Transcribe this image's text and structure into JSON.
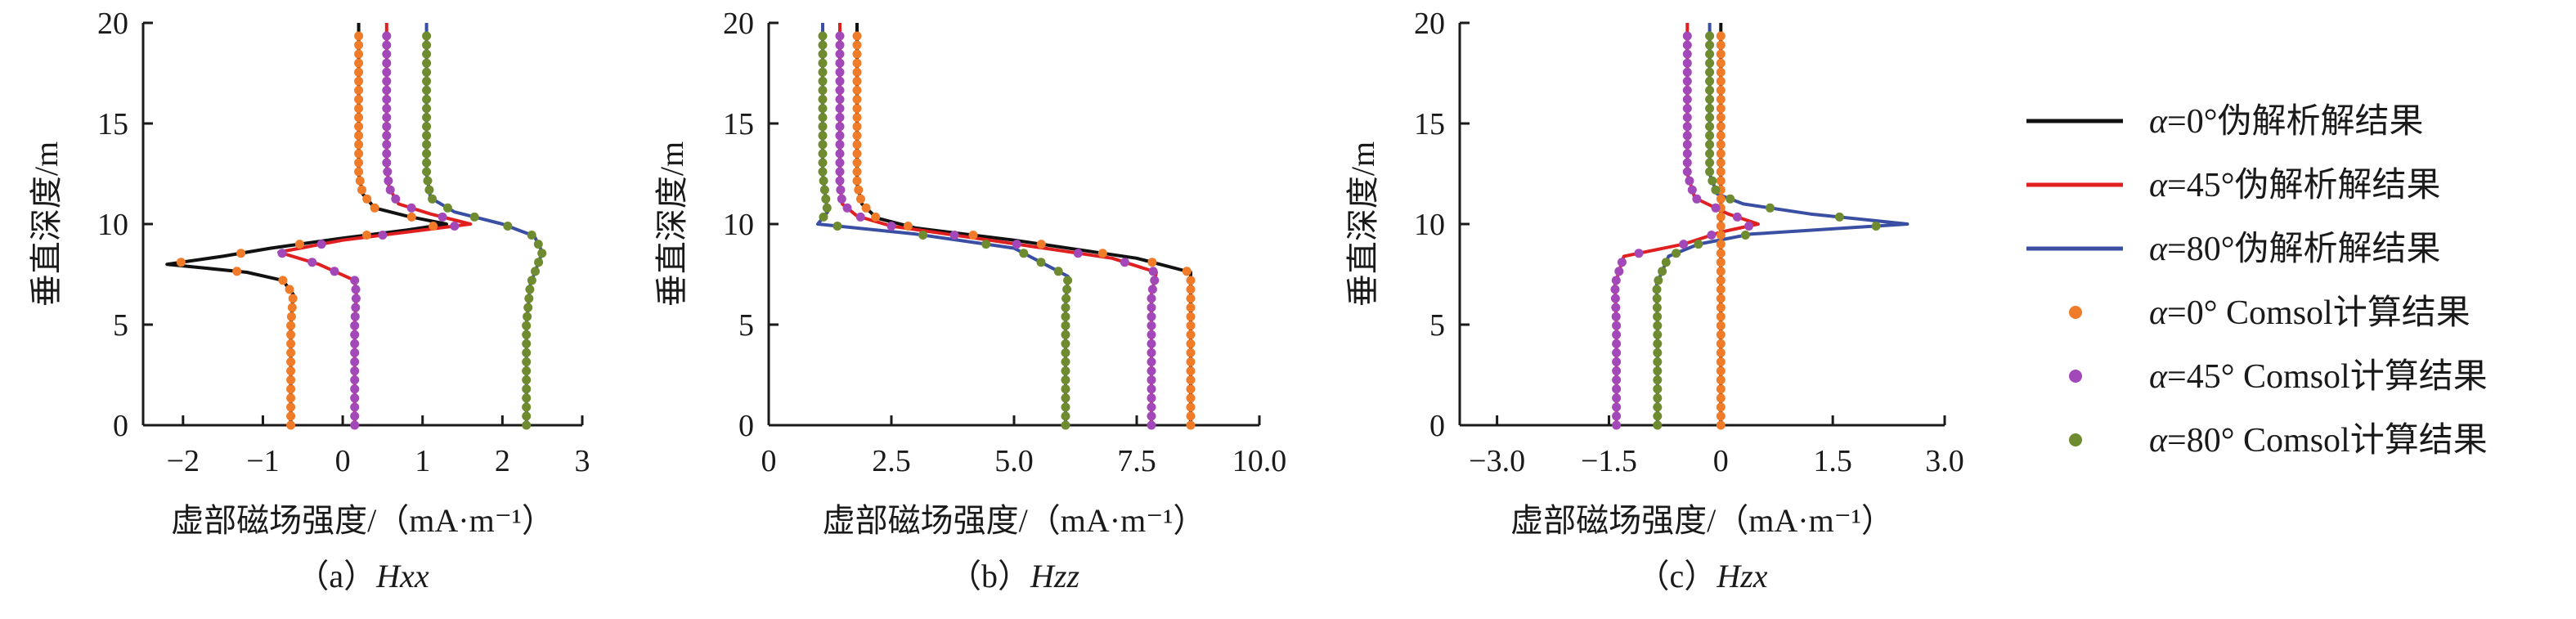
{
  "legend": [
    {
      "type": "line",
      "text": "α=0°伪解析解结果",
      "color": "#111111"
    },
    {
      "type": "line",
      "text": "α=45°伪解析解结果",
      "color": "#e02020"
    },
    {
      "type": "line",
      "text": "α=80°伪解析解结果",
      "color": "#3a4fa3"
    },
    {
      "type": "dot",
      "text": "α=0° Comsol计算结果",
      "color": "#f07c2a"
    },
    {
      "type": "dot",
      "text": "α=45° Comsol计算结果",
      "color": "#a348b8"
    },
    {
      "type": "dot",
      "text": "α=80° Comsol计算结果",
      "color": "#6e8c2f"
    }
  ],
  "chart_data": [
    {
      "type": "line",
      "caption": "（a）Hxx",
      "xlabel": "虚部磁场强度/（mA·m⁻¹）",
      "ylabel": "垂直深度/m",
      "xlim": [
        -2.5,
        3
      ],
      "ylim": [
        0,
        20
      ],
      "xticks": [
        {
          "v": -2,
          "label": "−2"
        },
        {
          "v": -1,
          "label": "−1"
        },
        {
          "v": 0,
          "label": "0"
        },
        {
          "v": 1,
          "label": "1"
        },
        {
          "v": 2,
          "label": "2"
        },
        {
          "v": 3,
          "label": "3"
        }
      ],
      "yticks": [
        "0",
        "5",
        "10",
        "15",
        "20"
      ],
      "series": [
        {
          "name": "α=0°伪解析解结果",
          "color": "#111111",
          "points": [
            [
              -0.65,
              0
            ],
            [
              -0.65,
              5
            ],
            [
              -0.62,
              6.5
            ],
            [
              -0.75,
              7.2
            ],
            [
              -1.2,
              7.6
            ],
            [
              -2.2,
              8
            ],
            [
              -1.5,
              8.4
            ],
            [
              -0.9,
              8.8
            ],
            [
              0,
              9.3
            ],
            [
              0.8,
              9.7
            ],
            [
              1.3,
              10
            ],
            [
              0.8,
              10.4
            ],
            [
              0.4,
              10.8
            ],
            [
              0.25,
              11.5
            ],
            [
              0.2,
              12.5
            ],
            [
              0.2,
              20
            ]
          ]
        },
        {
          "name": "α=45°伪解析解结果",
          "color": "#e02020",
          "points": [
            [
              0.15,
              0
            ],
            [
              0.15,
              5
            ],
            [
              0.17,
              6.5
            ],
            [
              0.15,
              7.2
            ],
            [
              -0.3,
              8
            ],
            [
              -0.8,
              8.6
            ],
            [
              0,
              9.2
            ],
            [
              1,
              9.7
            ],
            [
              1.6,
              10
            ],
            [
              1.1,
              10.5
            ],
            [
              0.7,
              11
            ],
            [
              0.58,
              11.8
            ],
            [
              0.55,
              13
            ],
            [
              0.55,
              20
            ]
          ]
        },
        {
          "name": "α=80°伪解析解结果",
          "color": "#3a4fa3",
          "points": [
            [
              2.3,
              0
            ],
            [
              2.3,
              5
            ],
            [
              2.35,
              7
            ],
            [
              2.5,
              8.6
            ],
            [
              2.4,
              9.4
            ],
            [
              2,
              10
            ],
            [
              1.4,
              10.6
            ],
            [
              1.1,
              11.3
            ],
            [
              1.05,
              12.5
            ],
            [
              1.05,
              20
            ]
          ]
        }
      ],
      "dots": [
        {
          "name": "α=0° Comsol计算结果",
          "color": "#f07c2a",
          "of": 0
        },
        {
          "name": "α=45° Comsol计算结果",
          "color": "#a348b8",
          "of": 1
        },
        {
          "name": "α=80° Comsol计算结果",
          "color": "#6e8c2f",
          "of": 2
        }
      ]
    },
    {
      "type": "line",
      "caption": "（b）Hzz",
      "xlabel": "虚部磁场强度/（mA·m⁻¹）",
      "ylabel": "垂直深度/m",
      "xlim": [
        0,
        10
      ],
      "ylim": [
        0,
        20
      ],
      "xticks": [
        {
          "v": 0,
          "label": "0"
        },
        {
          "v": 2.5,
          "label": "2.5"
        },
        {
          "v": 5,
          "label": "5.0"
        },
        {
          "v": 7.5,
          "label": "7.5"
        },
        {
          "v": 10,
          "label": "10.0"
        }
      ],
      "yticks": [
        "0",
        "5",
        "10",
        "15",
        "20"
      ],
      "series": [
        {
          "name": "α=0°伪解析解结果",
          "color": "#111111",
          "points": [
            [
              8.6,
              0
            ],
            [
              8.6,
              6
            ],
            [
              8.6,
              7.6
            ],
            [
              7.5,
              8.3
            ],
            [
              5,
              9.2
            ],
            [
              3,
              9.8
            ],
            [
              2.2,
              10.3
            ],
            [
              1.9,
              11
            ],
            [
              1.8,
              12
            ],
            [
              1.8,
              20
            ]
          ]
        },
        {
          "name": "α=45°伪解析解结果",
          "color": "#e02020",
          "points": [
            [
              7.8,
              0
            ],
            [
              7.8,
              6.5
            ],
            [
              7.9,
              7.6
            ],
            [
              7,
              8.3
            ],
            [
              4.5,
              9.2
            ],
            [
              2.5,
              9.9
            ],
            [
              1.8,
              10.4
            ],
            [
              1.5,
              11
            ],
            [
              1.45,
              12
            ],
            [
              1.45,
              20
            ]
          ]
        },
        {
          "name": "α=80°伪解析解结果",
          "color": "#3a4fa3",
          "points": [
            [
              6.05,
              0
            ],
            [
              6.05,
              6
            ],
            [
              6.1,
              7.4
            ],
            [
              5,
              8.8
            ],
            [
              3,
              9.5
            ],
            [
              1,
              10
            ],
            [
              1.2,
              10.6
            ],
            [
              1.15,
              11.5
            ],
            [
              1.1,
              12.5
            ],
            [
              1.1,
              20
            ]
          ]
        }
      ],
      "dots": [
        {
          "name": "α=0° Comsol计算结果",
          "color": "#f07c2a",
          "of": 0
        },
        {
          "name": "α=45° Comsol计算结果",
          "color": "#a348b8",
          "of": 1
        },
        {
          "name": "α=80° Comsol计算结果",
          "color": "#6e8c2f",
          "of": 2
        }
      ]
    },
    {
      "type": "line",
      "caption": "（c）Hzx",
      "xlabel": "虚部磁场强度/（mA·m⁻¹）",
      "ylabel": "垂直深度/m",
      "xlim": [
        -3.5,
        3
      ],
      "ylim": [
        0,
        20
      ],
      "xticks": [
        {
          "v": -3,
          "label": "−3.0"
        },
        {
          "v": -1.5,
          "label": "−1.5"
        },
        {
          "v": 0,
          "label": "0"
        },
        {
          "v": 1.5,
          "label": "1.5"
        },
        {
          "v": 3,
          "label": "3.0"
        }
      ],
      "yticks": [
        "0",
        "5",
        "10",
        "15",
        "20"
      ],
      "series": [
        {
          "name": "α=0°伪解析解结果",
          "color": "#111111",
          "points": [
            [
              0,
              0
            ],
            [
              0,
              20
            ]
          ]
        },
        {
          "name": "α=45°伪解析解结果",
          "color": "#e02020",
          "points": [
            [
              -1.4,
              0
            ],
            [
              -1.4,
              5
            ],
            [
              -1.42,
              7
            ],
            [
              -1.3,
              8.4
            ],
            [
              -0.5,
              9
            ],
            [
              0,
              9.6
            ],
            [
              0.5,
              10
            ],
            [
              0.1,
              10.5
            ],
            [
              -0.35,
              11.3
            ],
            [
              -0.45,
              12.5
            ],
            [
              -0.45,
              20
            ]
          ]
        },
        {
          "name": "α=80°伪解析解结果",
          "color": "#3a4fa3",
          "points": [
            [
              -0.85,
              0
            ],
            [
              -0.85,
              5
            ],
            [
              -0.86,
              7
            ],
            [
              -0.7,
              8.4
            ],
            [
              -0.3,
              9
            ],
            [
              0.4,
              9.5
            ],
            [
              2.5,
              10
            ],
            [
              1.2,
              10.5
            ],
            [
              0.3,
              11
            ],
            [
              -0.05,
              11.5
            ],
            [
              -0.15,
              12.5
            ],
            [
              -0.15,
              20
            ]
          ]
        }
      ],
      "dots": [
        {
          "name": "α=0° Comsol计算结果",
          "color": "#f07c2a",
          "of": 0
        },
        {
          "name": "α=45° Comsol计算结果",
          "color": "#a348b8",
          "of": 1
        },
        {
          "name": "α=80° Comsol计算结果",
          "color": "#6e8c2f",
          "of": 2
        }
      ]
    }
  ]
}
